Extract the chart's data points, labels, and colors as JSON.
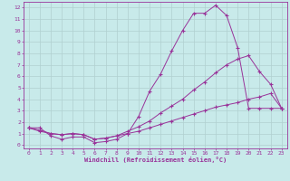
{
  "bg_color": "#c8eaea",
  "grid_color": "#b0d0d0",
  "line_color": "#993399",
  "marker": "+",
  "xlabel": "Windchill (Refroidissement éolien,°C)",
  "xlim": [
    -0.5,
    23.5
  ],
  "ylim": [
    -0.3,
    12.5
  ],
  "xticks": [
    0,
    1,
    2,
    3,
    4,
    5,
    6,
    7,
    8,
    9,
    10,
    11,
    12,
    13,
    14,
    15,
    16,
    17,
    18,
    19,
    20,
    21,
    22,
    23
  ],
  "yticks": [
    0,
    1,
    2,
    3,
    4,
    5,
    6,
    7,
    8,
    9,
    10,
    11,
    12
  ],
  "line1_x": [
    0,
    1,
    2,
    3,
    4,
    5,
    6,
    7,
    8,
    9,
    10,
    11,
    12,
    13,
    14,
    15,
    16,
    17,
    18,
    19,
    20,
    21,
    22,
    23
  ],
  "line1_y": [
    1.5,
    1.5,
    0.8,
    0.5,
    0.7,
    0.7,
    0.2,
    0.3,
    0.5,
    1.0,
    2.5,
    4.7,
    6.2,
    8.2,
    10.0,
    11.5,
    11.5,
    12.2,
    11.3,
    8.5,
    3.2,
    3.2,
    3.2,
    3.2
  ],
  "line2_x": [
    0,
    1,
    2,
    3,
    4,
    5,
    6,
    7,
    8,
    9,
    10,
    11,
    12,
    13,
    14,
    15,
    16,
    17,
    18,
    19,
    20,
    21,
    22,
    23
  ],
  "line2_y": [
    1.5,
    1.3,
    1.0,
    0.9,
    1.0,
    0.9,
    0.5,
    0.6,
    0.8,
    1.2,
    1.6,
    2.1,
    2.8,
    3.4,
    4.0,
    4.8,
    5.5,
    6.3,
    7.0,
    7.5,
    7.8,
    6.4,
    5.3,
    3.2
  ],
  "line3_x": [
    0,
    1,
    2,
    3,
    4,
    5,
    6,
    7,
    8,
    9,
    10,
    11,
    12,
    13,
    14,
    15,
    16,
    17,
    18,
    19,
    20,
    21,
    22,
    23
  ],
  "line3_y": [
    1.5,
    1.2,
    1.0,
    0.9,
    1.0,
    0.9,
    0.5,
    0.6,
    0.8,
    1.0,
    1.2,
    1.5,
    1.8,
    2.1,
    2.4,
    2.7,
    3.0,
    3.3,
    3.5,
    3.7,
    4.0,
    4.2,
    4.5,
    3.2
  ]
}
